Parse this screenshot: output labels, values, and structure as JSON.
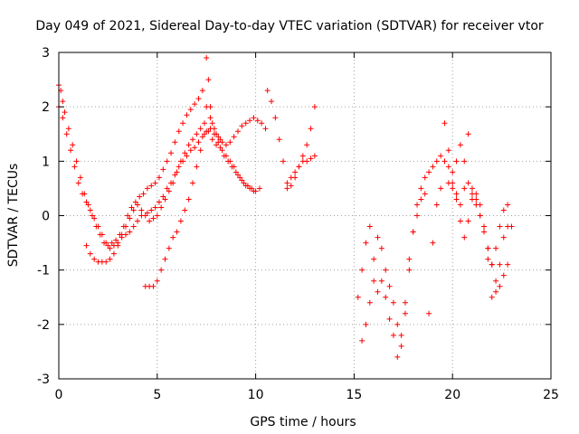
{
  "chart_data": {
    "type": "scatter",
    "title": "Day 049 of 2021, Sidereal Day-to-day VTEC variation (SDTVAR) for receiver vtor",
    "xlabel": "GPS time / hours",
    "ylabel": "SDTVAR / TECUs",
    "xlim": [
      0,
      25
    ],
    "ylim": [
      -3,
      3
    ],
    "xticks": [
      "0",
      "5",
      "10",
      "15",
      "20",
      "25"
    ],
    "yticks": [
      "-3",
      "-2",
      "-1",
      "0",
      "1",
      "2",
      "3"
    ],
    "grid": true,
    "marker": "+",
    "color": "#ff0000",
    "series": [
      {
        "x": [
          0.0,
          0.1,
          0.2,
          0.3,
          0.5,
          0.7,
          0.9,
          1.1,
          1.3,
          1.5,
          1.7,
          1.9,
          2.1,
          2.3,
          2.5,
          2.7,
          2.9,
          3.1,
          3.3,
          3.5,
          3.7,
          3.9,
          4.1,
          4.3,
          4.5,
          4.7,
          4.9,
          5.1,
          5.3,
          5.5,
          5.7,
          5.9,
          6.1,
          6.3,
          6.5,
          6.7,
          6.9,
          7.1,
          7.3,
          7.5,
          7.7,
          7.9,
          8.1,
          8.3,
          8.5,
          8.7,
          8.9,
          9.1,
          9.3,
          9.5,
          9.7,
          9.9,
          10.1,
          10.3,
          10.5
        ],
        "y": [
          2.4,
          2.3,
          2.1,
          1.9,
          1.6,
          1.3,
          1.0,
          0.7,
          0.4,
          0.2,
          0.0,
          -0.2,
          -0.35,
          -0.5,
          -0.55,
          -0.5,
          -0.45,
          -0.35,
          -0.2,
          0.0,
          0.15,
          0.25,
          0.35,
          0.4,
          0.5,
          0.55,
          0.6,
          0.7,
          0.85,
          1.0,
          1.15,
          1.35,
          1.55,
          1.7,
          1.85,
          1.95,
          2.05,
          2.15,
          2.3,
          2.0,
          1.8,
          1.6,
          1.45,
          1.35,
          1.3,
          1.35,
          1.45,
          1.55,
          1.65,
          1.7,
          1.75,
          1.8,
          1.75,
          1.7,
          1.6
        ]
      },
      {
        "x": [
          0.0,
          0.2,
          0.4,
          0.6,
          0.8,
          1.0,
          1.2,
          1.4,
          1.6,
          1.8,
          2.0,
          2.2,
          2.4,
          2.6,
          2.8,
          3.0,
          3.2,
          3.4,
          3.6,
          3.8,
          4.0,
          4.2,
          4.4,
          4.6,
          4.8,
          5.0,
          5.2,
          5.4,
          5.6,
          5.8,
          6.0,
          6.2,
          6.4,
          6.6,
          6.8,
          7.0,
          7.2,
          7.4,
          7.6,
          7.8,
          8.0,
          8.2,
          8.4,
          8.6,
          8.8,
          9.0,
          9.2,
          9.4,
          9.6,
          9.8,
          10.0,
          10.2
        ],
        "y": [
          2.0,
          1.8,
          1.5,
          1.2,
          0.9,
          0.6,
          0.4,
          0.25,
          0.1,
          -0.05,
          -0.2,
          -0.35,
          -0.5,
          -0.6,
          -0.55,
          -0.5,
          -0.35,
          -0.2,
          -0.05,
          0.1,
          0.2,
          0.1,
          0.0,
          -0.1,
          -0.05,
          0.0,
          0.15,
          0.3,
          0.45,
          0.6,
          0.8,
          1.0,
          1.15,
          1.3,
          1.4,
          1.5,
          1.6,
          1.7,
          1.55,
          1.4,
          1.3,
          1.25,
          1.1,
          1.0,
          0.9,
          0.8,
          0.7,
          0.6,
          0.55,
          0.5,
          0.45,
          0.5
        ]
      },
      {
        "x": [
          1.4,
          1.6,
          1.8,
          2.0,
          2.2,
          2.4,
          2.6,
          2.8,
          3.0,
          3.2,
          3.4,
          3.6,
          3.8,
          4.0,
          4.2,
          4.5,
          4.7,
          4.9,
          5.1,
          5.3,
          5.5,
          5.7,
          5.9,
          6.1,
          6.3,
          6.5,
          6.7,
          6.9,
          7.1,
          7.3,
          7.5,
          7.7,
          7.9,
          8.1,
          8.3,
          8.5,
          8.7,
          8.9,
          9.1,
          9.3,
          9.5,
          9.7,
          9.9
        ],
        "y": [
          -0.55,
          -0.7,
          -0.8,
          -0.85,
          -0.85,
          -0.85,
          -0.8,
          -0.7,
          -0.55,
          -0.4,
          -0.35,
          -0.3,
          -0.2,
          -0.1,
          0.0,
          0.05,
          0.1,
          0.15,
          0.25,
          0.35,
          0.5,
          0.6,
          0.75,
          0.9,
          1.0,
          1.1,
          1.2,
          1.25,
          1.35,
          1.45,
          1.55,
          1.6,
          1.5,
          1.35,
          1.2,
          1.1,
          1.0,
          0.9,
          0.75,
          0.65,
          0.55,
          0.5,
          0.45
        ]
      },
      {
        "x": [
          4.4,
          4.6,
          4.8,
          5.0,
          5.2,
          5.4,
          5.6,
          5.8,
          6.0,
          6.2,
          6.4,
          6.6,
          6.8,
          7.0,
          7.2,
          7.4,
          7.5,
          7.6,
          7.7,
          7.8,
          8.0,
          8.2
        ],
        "y": [
          -1.3,
          -1.3,
          -1.3,
          -1.2,
          -1.0,
          -0.8,
          -0.6,
          -0.4,
          -0.3,
          -0.1,
          0.1,
          0.3,
          0.6,
          0.9,
          1.2,
          1.5,
          2.9,
          2.5,
          2.0,
          1.7,
          1.5,
          1.4
        ]
      },
      {
        "x": [
          10.6,
          10.8,
          11.0,
          11.2,
          11.4,
          11.6,
          11.8,
          12.0,
          12.2,
          12.4,
          12.6,
          12.8,
          13.0
        ],
        "y": [
          2.3,
          2.1,
          1.8,
          1.4,
          1.0,
          0.6,
          0.55,
          0.7,
          0.9,
          1.1,
          1.3,
          1.6,
          2.0
        ]
      },
      {
        "x": [
          11.6,
          11.8,
          12.0,
          12.2,
          12.4,
          12.6,
          12.8,
          13.0
        ],
        "y": [
          0.5,
          0.7,
          0.8,
          0.9,
          1.0,
          1.0,
          1.05,
          1.1
        ]
      },
      {
        "x": [
          15.2,
          15.4,
          15.6,
          15.8,
          16.0,
          16.2,
          16.4,
          16.6,
          16.8,
          17.0,
          17.2,
          17.4,
          17.6,
          17.8,
          18.0,
          18.2,
          18.4,
          18.6,
          18.8,
          19.0,
          19.2,
          19.4,
          19.6,
          19.8,
          20.0,
          20.2,
          20.4,
          20.6,
          20.8,
          21.0,
          21.2,
          21.4,
          21.6,
          21.8,
          22.0,
          22.2,
          22.4,
          22.6,
          22.8
        ],
        "y": [
          -1.5,
          -1.0,
          -0.5,
          -0.2,
          -0.8,
          -1.4,
          -1.2,
          -1.5,
          -1.9,
          -2.2,
          -2.6,
          -2.2,
          -1.6,
          -0.8,
          -0.3,
          0.2,
          0.5,
          0.7,
          0.8,
          0.9,
          1.0,
          1.1,
          1.0,
          0.9,
          0.8,
          1.0,
          1.3,
          1.0,
          0.6,
          0.4,
          0.2,
          0.0,
          -0.3,
          -0.6,
          -0.9,
          -1.2,
          -1.3,
          -1.1,
          -0.9
        ]
      },
      {
        "x": [
          15.4,
          15.6,
          15.8,
          16.0,
          16.2,
          16.4,
          16.6,
          16.8,
          17.0,
          17.2,
          17.4,
          17.6,
          17.8,
          18.0,
          18.2,
          18.4,
          18.6,
          18.8,
          19.0,
          19.2,
          19.4,
          19.6,
          19.8,
          20.0,
          20.2,
          20.4,
          20.6,
          20.8,
          21.0,
          21.2,
          21.4,
          21.6,
          21.8,
          22.0,
          22.2,
          22.4,
          22.6,
          22.8
        ],
        "y": [
          -2.3,
          -2.0,
          -1.6,
          -1.2,
          -0.4,
          -0.6,
          -1.0,
          -1.3,
          -1.6,
          -2.0,
          -2.4,
          -1.8,
          -1.0,
          -0.3,
          0.0,
          0.3,
          0.4,
          -1.8,
          -0.5,
          0.2,
          0.5,
          1.7,
          1.2,
          0.6,
          0.4,
          0.2,
          0.5,
          1.5,
          0.5,
          0.3,
          0.0,
          -0.3,
          -0.8,
          -1.5,
          -1.4,
          -0.9,
          -0.4,
          -0.2
        ]
      },
      {
        "x": [
          19.8,
          20.0,
          20.2,
          20.4,
          20.6,
          20.8,
          21.0,
          21.2,
          21.4,
          21.6,
          21.8,
          22.0,
          22.2,
          22.4,
          22.6,
          22.8,
          23.0
        ],
        "y": [
          0.6,
          0.5,
          0.3,
          -0.1,
          -0.4,
          -0.1,
          0.3,
          0.4,
          0.2,
          -0.2,
          -0.6,
          -0.9,
          -0.6,
          -0.2,
          0.1,
          0.2,
          -0.2
        ]
      }
    ]
  }
}
